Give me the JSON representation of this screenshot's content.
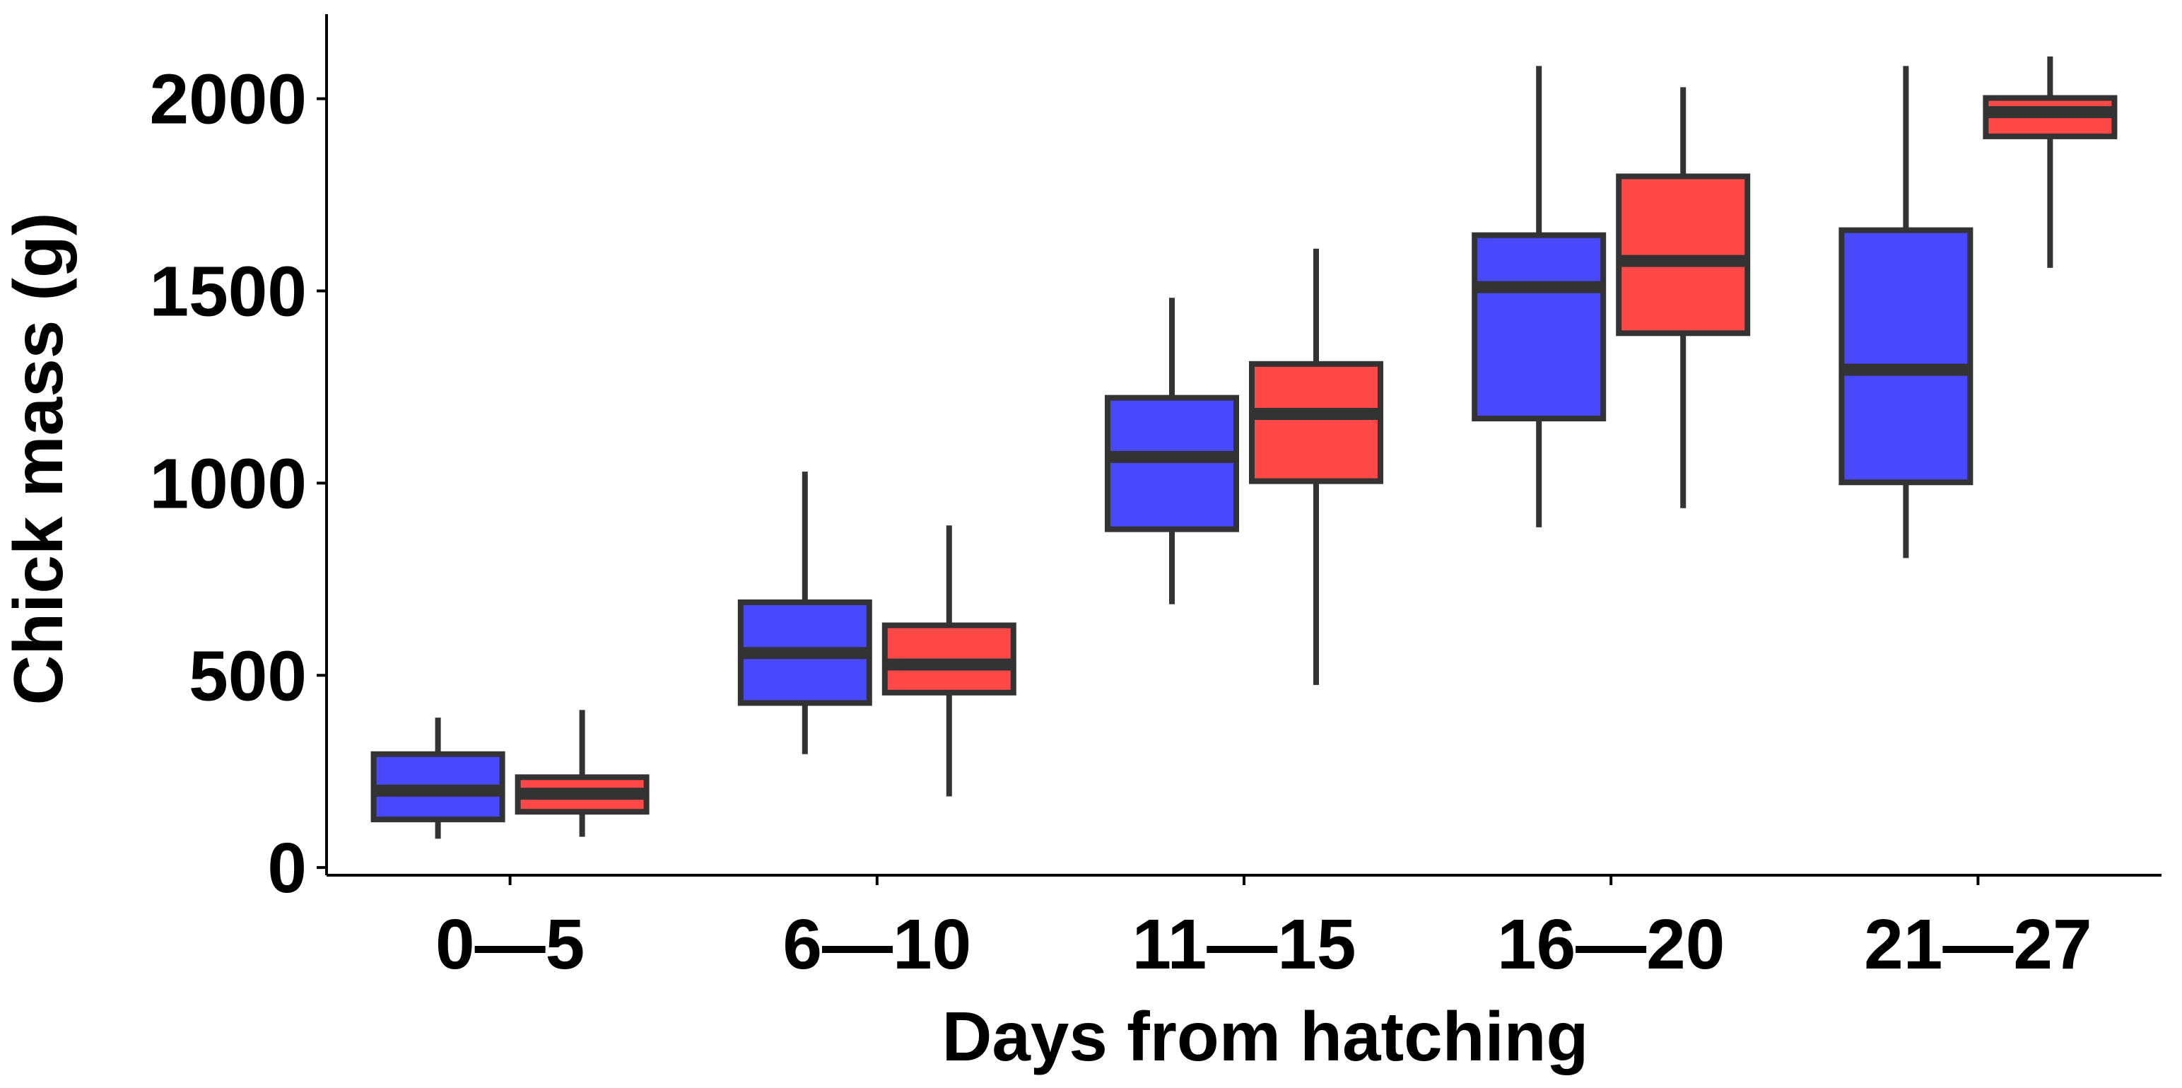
{
  "chart_data": {
    "type": "box",
    "xlabel": "Days from hatching",
    "ylabel": "Chick mass (g)",
    "ylim": [
      -20,
      2220
    ],
    "yticks": [
      0,
      500,
      1000,
      1500,
      2000
    ],
    "categories": [
      "0—5",
      "6—10",
      "11—15",
      "16—20",
      "21—27"
    ],
    "grid": false,
    "legend": "none",
    "series": [
      {
        "name": "blue",
        "color": "#4848ff",
        "boxes": [
          {
            "min": 75,
            "q1": 125,
            "median": 200,
            "q3": 295,
            "max": 390
          },
          {
            "min": 295,
            "q1": 428,
            "median": 558,
            "q3": 690,
            "max": 1030
          },
          {
            "min": 685,
            "q1": 880,
            "median": 1068,
            "q3": 1222,
            "max": 1482
          },
          {
            "min": 885,
            "q1": 1168,
            "median": 1510,
            "q3": 1645,
            "max": 2085
          },
          {
            "min": 805,
            "q1": 1002,
            "median": 1295,
            "q3": 1658,
            "max": 2085
          }
        ]
      },
      {
        "name": "red",
        "color": "#ff4848",
        "boxes": [
          {
            "min": 80,
            "q1": 145,
            "median": 192,
            "q3": 235,
            "max": 410
          },
          {
            "min": 185,
            "q1": 455,
            "median": 528,
            "q3": 630,
            "max": 890
          },
          {
            "min": 475,
            "q1": 1005,
            "median": 1180,
            "q3": 1310,
            "max": 1610
          },
          {
            "min": 935,
            "q1": 1390,
            "median": 1578,
            "q3": 1798,
            "max": 2030
          },
          {
            "min": 1560,
            "q1": 1902,
            "median": 1965,
            "q3": 2002,
            "max": 2110
          }
        ]
      }
    ]
  },
  "style": {
    "line_color": "#333333",
    "axis_color": "#000000"
  }
}
